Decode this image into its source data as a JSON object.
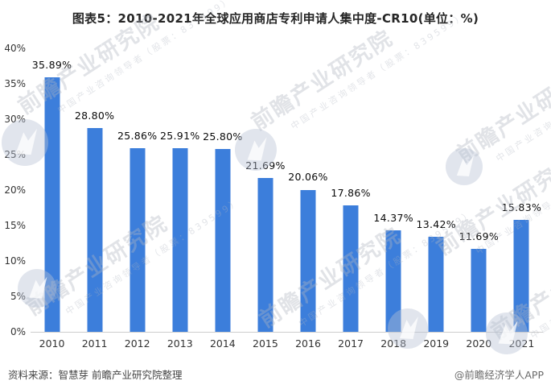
{
  "title": "图表5：2010-2021年全球应用商店专利申请人集中度-CR10(单位：%)",
  "chart_data": {
    "type": "bar",
    "title": "图表5：2010-2021年全球应用商店专利申请人集中度-CR10(单位：%)",
    "categories": [
      "2010",
      "2011",
      "2012",
      "2013",
      "2014",
      "2015",
      "2016",
      "2017",
      "2018",
      "2019",
      "2020",
      "2021"
    ],
    "values": [
      35.89,
      28.8,
      25.86,
      25.91,
      25.8,
      21.69,
      20.06,
      17.86,
      14.37,
      13.42,
      11.69,
      15.83
    ],
    "value_labels": [
      "35.89%",
      "28.80%",
      "25.86%",
      "25.91%",
      "25.80%",
      "21.69%",
      "20.06%",
      "17.86%",
      "14.37%",
      "13.42%",
      "11.69%",
      "15.83%"
    ],
    "xlabel": "",
    "ylabel": "",
    "ylim": [
      0,
      40
    ],
    "ytick_labels": [
      "0%",
      "5%",
      "10%",
      "15%",
      "20%",
      "25%",
      "30%",
      "35%",
      "40%"
    ],
    "grid": false,
    "legend": "none",
    "bar_color": "#3C7EDB"
  },
  "colors": {
    "bar": "#3C7EDB",
    "axis_line": "#CDCDCD",
    "title_text": "#262626",
    "tick_text": "#333333",
    "value_label_text": "#0A0A0A",
    "source_text": "#454545",
    "credit_text": "#6B6B6B"
  },
  "footer": {
    "source": "资料来源：智慧芽 前瞻产业研究院整理",
    "credit": "@前瞻经济学人APP"
  },
  "watermark": {
    "brand": "前瞻产业研究院",
    "tagline": "中国产业咨询领导者（股票：839599）",
    "logo_icon": "qianzhan-logo-icon"
  }
}
